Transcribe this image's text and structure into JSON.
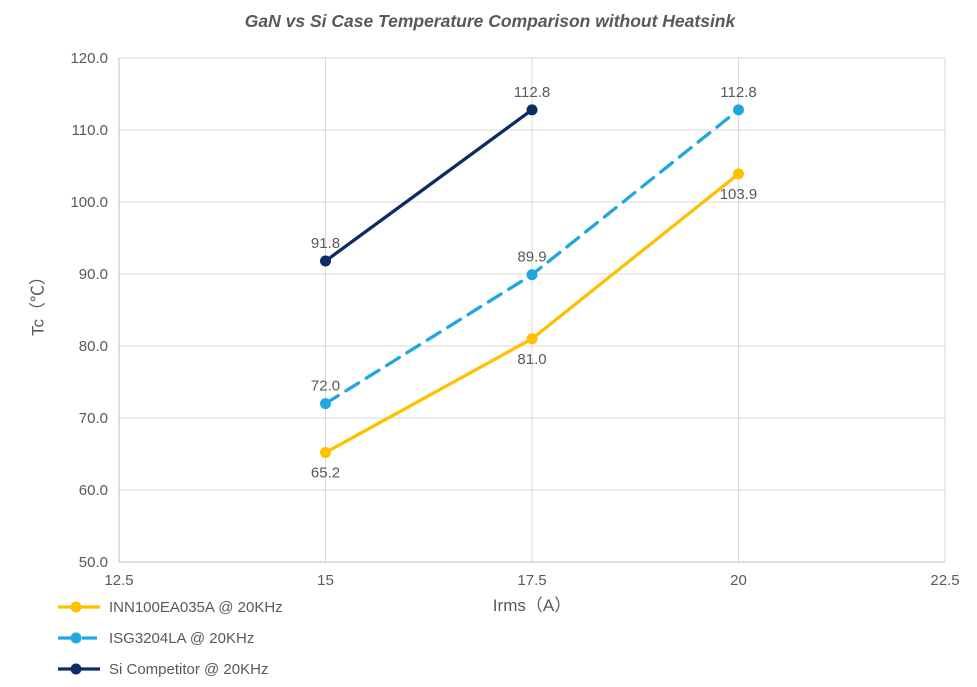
{
  "chart_data": {
    "type": "line",
    "title": "GaN vs Si Case Temperature Comparison without Heatsink",
    "xlabel": "Irms（A）",
    "ylabel": "Tc（℃）",
    "xlim": [
      12.5,
      22.5
    ],
    "ylim": [
      50.0,
      120.0
    ],
    "x_ticks": [
      "12.5",
      "15",
      "17.5",
      "20",
      "22.5"
    ],
    "x_tick_values": [
      12.5,
      15,
      17.5,
      20,
      22.5
    ],
    "y_ticks": [
      "50.0",
      "60.0",
      "70.0",
      "80.0",
      "90.0",
      "100.0",
      "110.0",
      "120.0"
    ],
    "y_tick_values": [
      50,
      60,
      70,
      80,
      90,
      100,
      110,
      120
    ],
    "grid": true,
    "legend_position": "bottom-left",
    "series": [
      {
        "name": "INN100EA035A @ 20KHz",
        "color": "#FFC000",
        "dash": "solid",
        "x": [
          15,
          17.5,
          20
        ],
        "values": [
          65.2,
          81.0,
          103.9
        ],
        "data_labels": [
          "65.2",
          "81.0",
          "103.9"
        ],
        "label_position": "below"
      },
      {
        "name": "ISG3204LA @ 20KHz",
        "color": "#21A7DF",
        "dash": "dashed",
        "x": [
          15,
          17.5,
          20
        ],
        "values": [
          72.0,
          89.9,
          112.8
        ],
        "data_labels": [
          "72.0",
          "89.9",
          "112.8"
        ],
        "label_position": "above"
      },
      {
        "name": "Si Competitor @ 20KHz",
        "color": "#0E2B63",
        "dash": "solid",
        "x": [
          15,
          17.5
        ],
        "values": [
          91.8,
          112.8
        ],
        "data_labels": [
          "91.8",
          "112.8"
        ],
        "label_position": "above"
      }
    ]
  },
  "colors": {
    "gridline": "#D9D9D9",
    "axis_line": "#BFBFBF",
    "tick_text": "#595959",
    "data_label_text": "#595959",
    "title_text": "#595959"
  }
}
